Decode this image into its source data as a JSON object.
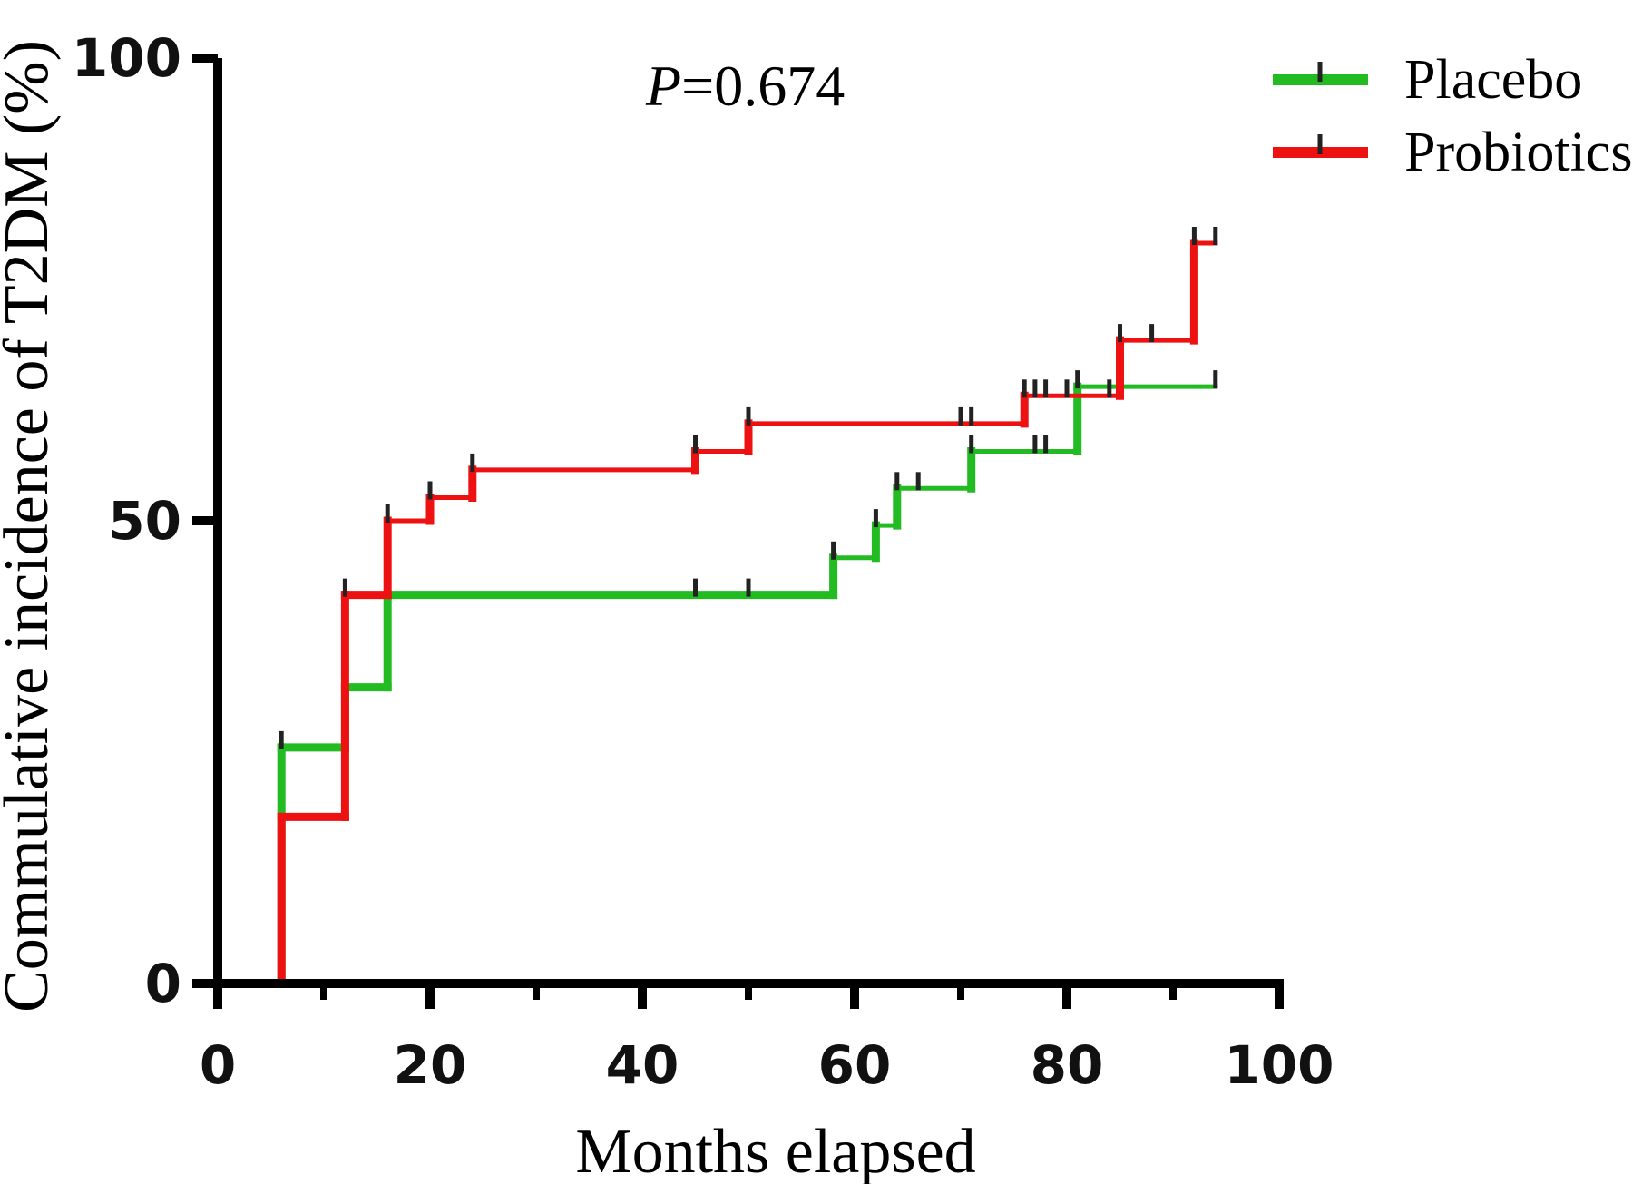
{
  "chart_data": {
    "type": "line",
    "step": true,
    "title": "",
    "annotation": {
      "italic": "P",
      "text": "=0.674"
    },
    "xlabel": "Months elapsed",
    "ylabel": "Commulative incidence of T2DM (%)",
    "xlim": [
      0,
      100
    ],
    "ylim": [
      0,
      100
    ],
    "xticks": [
      "0",
      "20",
      "40",
      "60",
      "80",
      "100"
    ],
    "yticks": [
      "0",
      "50",
      "100"
    ],
    "grid": false,
    "legend_position": "top-right",
    "series": [
      {
        "name": "Placebo",
        "color": "#22bb22",
        "steps": [
          [
            0,
            0
          ],
          [
            6,
            25.5
          ],
          [
            12,
            32
          ],
          [
            16,
            42
          ],
          [
            58,
            46
          ],
          [
            62,
            49.5
          ],
          [
            64,
            53.5
          ],
          [
            71,
            57.5
          ],
          [
            81,
            64.5
          ],
          [
            94,
            64.5
          ]
        ],
        "censored": [
          [
            6,
            25.5
          ],
          [
            12,
            32
          ],
          [
            16,
            42
          ],
          [
            45,
            42
          ],
          [
            50,
            42
          ],
          [
            58,
            46
          ],
          [
            62,
            49.5
          ],
          [
            64,
            53.5
          ],
          [
            66,
            53.5
          ],
          [
            71,
            57.5
          ],
          [
            77,
            57.5
          ],
          [
            78,
            57.5
          ],
          [
            81,
            64.5
          ],
          [
            94,
            64.5
          ]
        ]
      },
      {
        "name": "Probiotics",
        "color": "#ee1111",
        "steps": [
          [
            0,
            0
          ],
          [
            6,
            18
          ],
          [
            12,
            42
          ],
          [
            16,
            50
          ],
          [
            20,
            52.5
          ],
          [
            24,
            55.5
          ],
          [
            45,
            57.5
          ],
          [
            50,
            60.5
          ],
          [
            76,
            63.5
          ],
          [
            85,
            69.5
          ],
          [
            92,
            80
          ],
          [
            94,
            80
          ]
        ],
        "censored": [
          [
            12,
            42
          ],
          [
            16,
            50
          ],
          [
            20,
            52.5
          ],
          [
            24,
            55.5
          ],
          [
            45,
            57.5
          ],
          [
            50,
            60.5
          ],
          [
            70,
            60.5
          ],
          [
            71,
            60.5
          ],
          [
            76,
            63.5
          ],
          [
            77,
            63.5
          ],
          [
            78,
            63.5
          ],
          [
            80,
            63.5
          ],
          [
            84,
            63.5
          ],
          [
            85,
            69.5
          ],
          [
            88,
            69.5
          ],
          [
            92,
            80
          ],
          [
            94,
            80
          ]
        ]
      }
    ]
  }
}
